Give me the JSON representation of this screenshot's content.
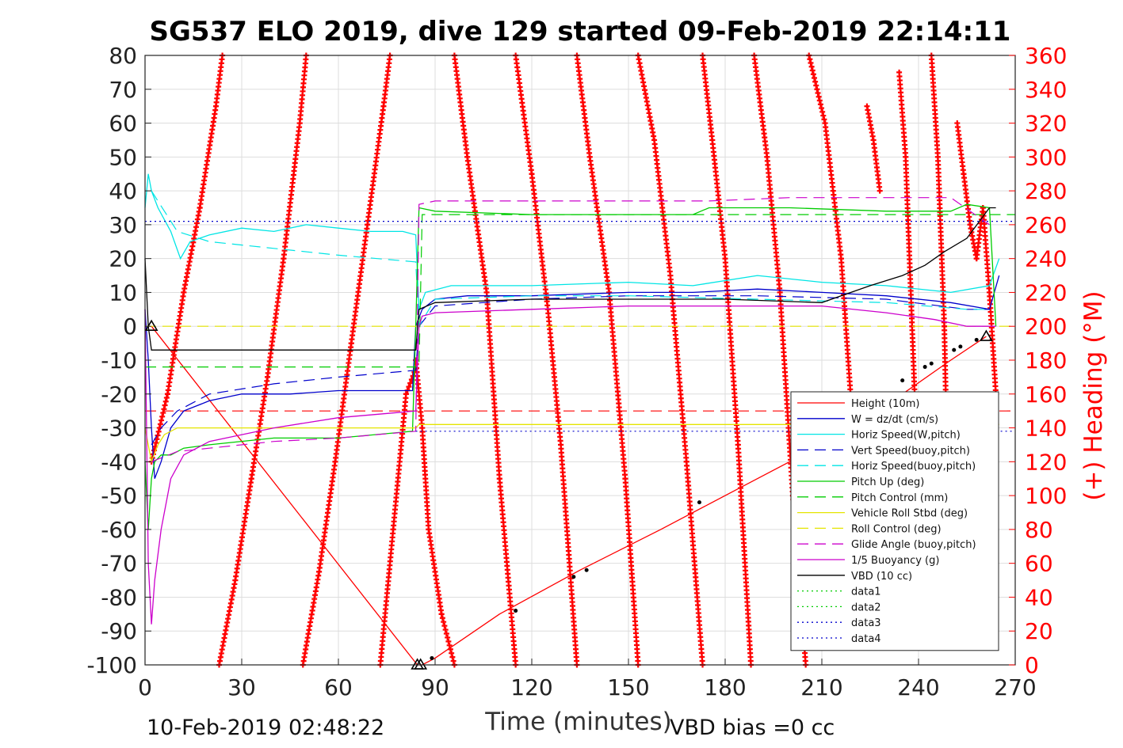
{
  "chart_data": {
    "type": "line",
    "title": "SG537 ELO 2019, dive 129 started 09-Feb-2019 22:14:11",
    "xlabel": "Time (minutes)",
    "ylabel_right": "(+) Heading (°M)",
    "xlim": [
      0,
      270
    ],
    "ylim": [
      -100,
      80
    ],
    "ylim_right": [
      0,
      360
    ],
    "x_ticks": [
      "0",
      "30",
      "60",
      "90",
      "120",
      "150",
      "180",
      "210",
      "240",
      "270"
    ],
    "y_ticks": [
      "80",
      "70",
      "60",
      "50",
      "40",
      "30",
      "20",
      "10",
      "0",
      "-10",
      "-20",
      "-30",
      "-40",
      "-50",
      "-60",
      "-70",
      "-80",
      "-90",
      "-100"
    ],
    "y_right_ticks": [
      "360",
      "340",
      "320",
      "300",
      "280",
      "260",
      "240",
      "220",
      "200",
      "180",
      "160",
      "140",
      "120",
      "100",
      "80",
      "60",
      "40",
      "20",
      "0"
    ],
    "grid": true,
    "legend_position": "bottom-right",
    "footer_left": "10-Feb-2019 02:48:22",
    "footer_right": "VBD bias =0 cc",
    "colors": {
      "height": "#ff0000",
      "w": "#0000cc",
      "horiz_w": "#00e5e5",
      "pitch": "#00cc00",
      "roll": "#e5e500",
      "buoy": "#cc00cc",
      "vbd": "#000000",
      "heading": "#ff0000"
    },
    "series": [
      {
        "name": "Height (10m)",
        "style": "solid",
        "color": "#ff0000",
        "x": [
          2,
          84.5,
          86,
          90,
          110,
          135,
          160,
          190,
          220,
          250,
          261
        ],
        "y": [
          0,
          -100,
          -100,
          -98,
          -85,
          -72,
          -60,
          -45,
          -30,
          -10,
          -3
        ]
      },
      {
        "name": "W = dz/dt (cm/s)",
        "style": "solid",
        "color": "#0000cc",
        "x": [
          0,
          1,
          2,
          3,
          5,
          8,
          12,
          20,
          30,
          45,
          60,
          75,
          83,
          84,
          86,
          90,
          100,
          120,
          150,
          170,
          190,
          210,
          230,
          250,
          262,
          265
        ],
        "y": [
          5,
          -10,
          -30,
          -45,
          -40,
          -30,
          -25,
          -22,
          -20,
          -20,
          -19,
          -19,
          -19,
          0,
          5,
          8,
          9,
          9,
          10,
          10,
          11,
          10,
          9,
          7,
          5,
          15
        ]
      },
      {
        "name": "Horiz Speed(W,pitch)",
        "style": "solid",
        "color": "#00e5e5",
        "x": [
          0,
          1,
          2,
          4,
          8,
          11,
          14,
          20,
          30,
          40,
          50,
          60,
          70,
          80,
          84,
          85,
          87,
          95,
          120,
          150,
          170,
          190,
          210,
          230,
          250,
          262,
          265
        ],
        "y": [
          35,
          45,
          40,
          35,
          28,
          20,
          25,
          27,
          29,
          28,
          30,
          29,
          28,
          28,
          27,
          5,
          10,
          12,
          12,
          13,
          12,
          15,
          13,
          12,
          10,
          12,
          20
        ]
      },
      {
        "name": "Vert Speed(buoy,pitch)",
        "style": "dashed",
        "color": "#0000cc",
        "x": [
          2,
          5,
          10,
          20,
          40,
          60,
          84,
          85,
          90,
          120,
          150,
          190,
          230,
          255,
          262
        ],
        "y": [
          -35,
          -30,
          -25,
          -20,
          -17,
          -15,
          -13,
          0,
          6,
          8,
          9,
          9,
          8,
          5,
          5
        ]
      },
      {
        "name": "Horiz Speed(buoy,pitch)",
        "style": "dashed",
        "color": "#00e5e5",
        "x": [
          2,
          10,
          20,
          40,
          60,
          84,
          85,
          90,
          120,
          150,
          190,
          230,
          255,
          262
        ],
        "y": [
          40,
          28,
          25,
          23,
          21,
          19,
          0,
          8,
          9,
          9,
          8,
          7,
          5,
          5
        ]
      },
      {
        "name": "Pitch Up (deg)",
        "style": "solid",
        "color": "#00cc00",
        "x": [
          0,
          1,
          2,
          3,
          5,
          8,
          12,
          20,
          40,
          60,
          83,
          84,
          85,
          90,
          120,
          150,
          170,
          175,
          200,
          230,
          250,
          255,
          262,
          264
        ],
        "y": [
          -40,
          -60,
          -45,
          -40,
          -38,
          -38,
          -36,
          -35,
          -33,
          -33,
          -31,
          0,
          35,
          34,
          33,
          33,
          33,
          35,
          35,
          34,
          34,
          36,
          35,
          0
        ]
      },
      {
        "name": "Pitch Control (mm)",
        "style": "dashed",
        "color": "#00cc00",
        "x": [
          0,
          85,
          86,
          270
        ],
        "y": [
          -12,
          -12,
          33,
          33
        ]
      },
      {
        "name": "Vehicle Roll Stbd (deg)",
        "style": "solid",
        "color": "#e5e500",
        "x": [
          0,
          2,
          4,
          6,
          10,
          20,
          40,
          84,
          85,
          120,
          180,
          250,
          265
        ],
        "y": [
          -30,
          -40,
          -35,
          -32,
          -30,
          -30,
          -30,
          -30,
          -29,
          -29,
          -29,
          -29,
          -29
        ]
      },
      {
        "name": "Roll Control (deg)",
        "style": "dashed",
        "color": "#e5e500",
        "x": [
          0,
          270
        ],
        "y": [
          0,
          0
        ]
      },
      {
        "name": "Glide Angle (buoy,pitch)",
        "style": "dashed",
        "color": "#cc00cc",
        "x": [
          2,
          10,
          20,
          40,
          60,
          84,
          85,
          90,
          120,
          150,
          175,
          200,
          230,
          250,
          262
        ],
        "y": [
          -40,
          -37,
          -36,
          -34,
          -33,
          -31,
          36,
          37,
          37,
          37,
          37,
          38,
          38,
          38,
          30
        ]
      },
      {
        "name": "1/5 Buoyancy (g)",
        "style": "solid",
        "color": "#cc00cc",
        "x": [
          0,
          1,
          2,
          3,
          5,
          8,
          12,
          20,
          40,
          60,
          84,
          85,
          86,
          90,
          120,
          150,
          180,
          210,
          230,
          245,
          255,
          262,
          264
        ],
        "y": [
          5,
          -70,
          -88,
          -75,
          -60,
          -45,
          -38,
          -34,
          -30,
          -27,
          -25,
          0,
          3,
          4,
          5,
          6,
          6,
          6,
          4,
          2,
          0,
          0,
          0
        ]
      },
      {
        "name": "VBD (10 cc)",
        "style": "solid",
        "color": "#000000",
        "x": [
          0,
          1,
          2,
          3,
          10,
          40,
          60,
          84,
          85,
          90,
          120,
          180,
          210,
          225,
          235,
          242,
          248,
          255,
          262,
          264
        ],
        "y": [
          20,
          0,
          -7,
          -7,
          -7,
          -7,
          -7,
          -7,
          5,
          7,
          8,
          8,
          7,
          12,
          15,
          18,
          22,
          26,
          35,
          35
        ]
      },
      {
        "name": "data1",
        "style": "dotted",
        "color": "#00cc00",
        "x": [],
        "y": []
      },
      {
        "name": "data2",
        "style": "dotted",
        "color": "#00cc00",
        "x": [],
        "y": []
      },
      {
        "name": "data3",
        "style": "dotted",
        "color": "#0000cc",
        "x": [
          0,
          270
        ],
        "y": [
          31,
          31
        ]
      },
      {
        "name": "data4",
        "style": "dotted",
        "color": "#0000cc",
        "x": [
          84,
          270
        ],
        "y": [
          -31,
          -31
        ]
      }
    ],
    "reference_lines": [
      {
        "color": "#ff0000",
        "style": "dashed",
        "y": -25,
        "x": [
          0,
          270
        ]
      }
    ],
    "heading_sweeps": [
      {
        "x": [
          2,
          7,
          12,
          17,
          22,
          24
        ],
        "y": [
          120,
          160,
          220,
          270,
          330,
          360
        ]
      },
      {
        "x": [
          23,
          28,
          33,
          38,
          43,
          48,
          50
        ],
        "y": [
          0,
          50,
          110,
          170,
          240,
          320,
          360
        ]
      },
      {
        "x": [
          49,
          54,
          59,
          64,
          69,
          74,
          76
        ],
        "y": [
          0,
          55,
          120,
          190,
          260,
          330,
          360
        ]
      },
      {
        "x": [
          73,
          77,
          81,
          84
        ],
        "y": [
          0,
          80,
          160,
          175
        ]
      },
      {
        "x": [
          84,
          86,
          88,
          92,
          96
        ],
        "y": [
          180,
          140,
          80,
          30,
          0
        ]
      },
      {
        "x": [
          96,
          100,
          106,
          110,
          115
        ],
        "y": [
          360,
          300,
          220,
          110,
          0
        ]
      },
      {
        "x": [
          115,
          120,
          125,
          129,
          134
        ],
        "y": [
          360,
          290,
          210,
          130,
          0
        ]
      },
      {
        "x": [
          134,
          138,
          144,
          149,
          153
        ],
        "y": [
          360,
          300,
          220,
          110,
          0
        ]
      },
      {
        "x": [
          153,
          158,
          163,
          168,
          173
        ],
        "y": [
          360,
          310,
          230,
          120,
          0
        ]
      },
      {
        "x": [
          173,
          176,
          180,
          184,
          188
        ],
        "y": [
          360,
          310,
          240,
          130,
          0
        ]
      },
      {
        "x": [
          189,
          193,
          197,
          201,
          205
        ],
        "y": [
          360,
          300,
          220,
          100,
          0
        ]
      },
      {
        "x": [
          206,
          211,
          216,
          220,
          224
        ],
        "y": [
          360,
          320,
          240,
          130,
          40
        ]
      },
      {
        "x": [
          224,
          226,
          228
        ],
        "y": [
          330,
          310,
          280
        ]
      },
      {
        "x": [
          234,
          236,
          238,
          240
        ],
        "y": [
          350,
          300,
          200,
          100
        ]
      },
      {
        "x": [
          244,
          246,
          248,
          250
        ],
        "y": [
          360,
          300,
          200,
          20
        ]
      },
      {
        "x": [
          252,
          254,
          256,
          258,
          260,
          262,
          264
        ],
        "y": [
          320,
          290,
          260,
          240,
          270,
          220,
          160
        ]
      }
    ],
    "markers_triangle": [
      [
        2,
        0
      ],
      [
        84.5,
        -100
      ],
      [
        85.5,
        -100
      ],
      [
        261,
        -3
      ]
    ],
    "markers_dot": [
      [
        89,
        -98
      ],
      [
        115,
        -84
      ],
      [
        133,
        -74
      ],
      [
        137,
        -72
      ],
      [
        172,
        -52
      ],
      [
        235,
        -16
      ],
      [
        242,
        -12
      ],
      [
        244,
        -11
      ],
      [
        251,
        -7
      ],
      [
        253,
        -6
      ],
      [
        258,
        -4
      ]
    ]
  }
}
